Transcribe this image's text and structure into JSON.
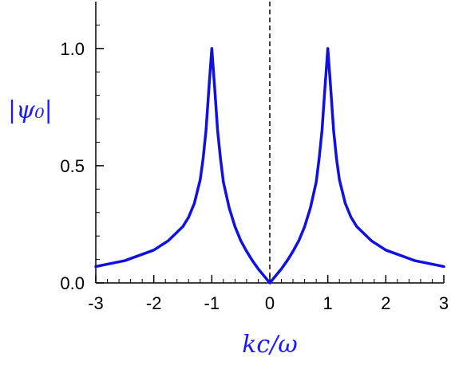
{
  "chart_data": {
    "type": "line",
    "xlabel": "kc/ω",
    "ylabel": "|ψ₀|",
    "xlim": [
      -3,
      3
    ],
    "ylim": [
      0,
      1.2
    ],
    "x_ticks": [
      -3,
      -2,
      -1,
      0,
      1,
      2,
      3
    ],
    "x_tick_labels": [
      "-3",
      "-2",
      "-1",
      "0",
      "1",
      "2",
      "3"
    ],
    "y_ticks": [
      0.0,
      0.5,
      1.0
    ],
    "y_tick_labels": [
      "0.0",
      "0.5",
      "1.0"
    ],
    "grid": false,
    "reference_line": {
      "x": 0,
      "style": "dashed"
    },
    "series": [
      {
        "x": [
          -3.0,
          -2.5,
          -2.0,
          -1.75,
          -1.5,
          -1.4,
          -1.3,
          -1.2,
          -1.15,
          -1.1,
          -1.05,
          -1.0,
          -0.95,
          -0.9,
          -0.85,
          -0.8,
          -0.7,
          -0.6,
          -0.5,
          -0.4,
          -0.3,
          -0.2,
          -0.1,
          0.0,
          0.1,
          0.2,
          0.3,
          0.4,
          0.5,
          0.6,
          0.7,
          0.8,
          0.85,
          0.9,
          0.95,
          1.0,
          1.05,
          1.1,
          1.15,
          1.2,
          1.3,
          1.4,
          1.5,
          1.75,
          2.0,
          2.5,
          3.0
        ],
        "y": [
          0.07,
          0.095,
          0.14,
          0.18,
          0.24,
          0.28,
          0.34,
          0.44,
          0.53,
          0.65,
          0.83,
          1.0,
          0.83,
          0.65,
          0.53,
          0.43,
          0.32,
          0.24,
          0.18,
          0.135,
          0.095,
          0.06,
          0.03,
          0.0,
          0.03,
          0.06,
          0.095,
          0.135,
          0.18,
          0.24,
          0.32,
          0.43,
          0.53,
          0.65,
          0.83,
          1.0,
          0.83,
          0.65,
          0.53,
          0.44,
          0.34,
          0.28,
          0.24,
          0.18,
          0.14,
          0.095,
          0.07
        ],
        "color": "#1010e0"
      }
    ],
    "colors": {
      "curve": "#1010e0",
      "axis_label": "#1a1aff",
      "axes": "#000000"
    }
  }
}
